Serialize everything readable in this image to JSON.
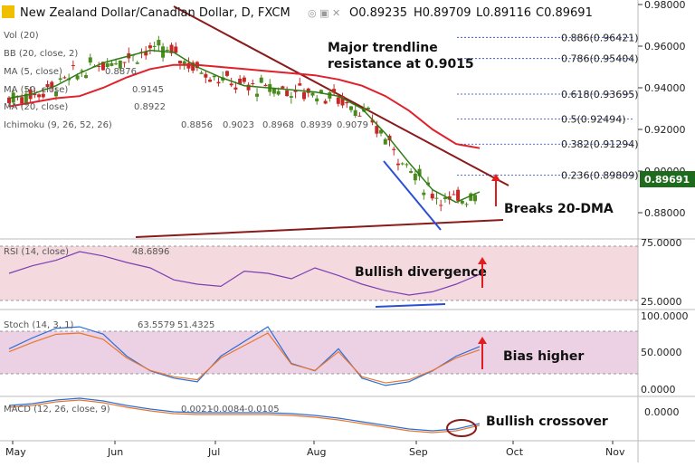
{
  "header": {
    "pair": "New Zealand Dollar/Canadian Dollar, D, FXCM",
    "o": "O0.89235",
    "h": "H0.89709",
    "l": "L0.89116",
    "c": "C0.89691"
  },
  "indicators": {
    "vol": "Vol (20)",
    "bb": "BB (20, close, 2)",
    "ma1": "MA (5, close)",
    "ma1_val": "0.8876",
    "ma2": "MA (50, close)",
    "ma2_val": "0.9145",
    "ma3": "MA (20, close)",
    "ma3_val": "0.8922",
    "ichimoku": "Ichimoku (9, 26, 52, 26)",
    "ichimoku_vals": [
      "0.8856",
      "0.9023",
      "0.8968",
      "0.8939",
      "0.9079"
    ],
    "rsi": "RSI (14, close)",
    "rsi_val": "48.6896",
    "stoch": "Stoch (14, 3, 1)",
    "stoch_k": "63.5579",
    "stoch_d": "51.4325",
    "macd": "MACD (12, 26, close, 9)",
    "macd_vals": [
      "0.0021",
      "-0.0084",
      "-0.0105"
    ]
  },
  "price_axis": [
    "0.98000",
    "0.96000",
    "0.94000",
    "0.92000",
    "0.90000",
    "0.88000"
  ],
  "last_price": "0.89691",
  "rsi_axis": [
    "75.0000",
    "25.0000"
  ],
  "stoch_axis": [
    "100.0000",
    "50.0000",
    "0.0000"
  ],
  "macd_axis": [
    "0.0000"
  ],
  "x_axis": [
    "May",
    "Jun",
    "Jul",
    "Aug",
    "Sep",
    "Oct",
    "Nov"
  ],
  "fib_levels": [
    {
      "label": "0.886(0.96421)",
      "price": 0.96421
    },
    {
      "label": "0.786(0.95404)",
      "price": 0.95404
    },
    {
      "label": "0.618(0.93695)",
      "price": 0.93695
    },
    {
      "label": "0.5(0.92494)",
      "price": 0.92494
    },
    {
      "label": "0.382(0.91294)",
      "price": 0.91294
    },
    {
      "label": "0.236(0.89809)",
      "price": 0.89809
    }
  ],
  "annotations": {
    "trend": "Major trendline\nresistance at 0.9015",
    "dma": "Breaks 20-DMA",
    "div": "Bullish divergence",
    "bias": "Bias higher",
    "cross": "Bullish crossover"
  },
  "colors": {
    "ma50": "#e0202a",
    "ma20": "#2e7d12",
    "ma5": "#2a4fd6",
    "trend": "#8b1a1a",
    "up": "#4a8a1e",
    "down": "#c62828",
    "rsi": "#7b3fb3",
    "rsi_band": "#f4d9df",
    "stoch_band": "#ecd0e4",
    "stoch_k": "#2a6fd6",
    "stoch_d": "#e8772e",
    "arrow": "#e01e1e",
    "fib": "#2a3bd0",
    "last": "#1e6b1e"
  },
  "chart_data": {
    "type": "candlestick",
    "title": "New Zealand Dollar/Canadian Dollar, D, FXCM",
    "x": [
      "2017-05-01",
      "2017-05-08",
      "2017-05-15",
      "2017-05-22",
      "2017-05-29",
      "2017-06-05",
      "2017-06-12",
      "2017-06-19",
      "2017-06-26",
      "2017-07-03",
      "2017-07-10",
      "2017-07-17",
      "2017-07-24",
      "2017-07-31",
      "2017-08-07",
      "2017-08-14",
      "2017-08-21",
      "2017-08-28",
      "2017-09-04",
      "2017-09-11",
      "2017-09-18"
    ],
    "series": [
      {
        "name": "MA (50, close)",
        "values": [
          0.931,
          0.933,
          0.935,
          0.936,
          0.94,
          0.945,
          0.949,
          0.951,
          0.951,
          0.95,
          0.949,
          0.948,
          0.947,
          0.946,
          0.944,
          0.941,
          0.936,
          0.929,
          0.92,
          0.913,
          0.911
        ]
      },
      {
        "name": "MA (20, close)",
        "values": [
          0.935,
          0.937,
          0.941,
          0.947,
          0.952,
          0.955,
          0.958,
          0.957,
          0.95,
          0.945,
          0.941,
          0.94,
          0.939,
          0.938,
          0.936,
          0.93,
          0.918,
          0.904,
          0.891,
          0.885,
          0.89
        ]
      },
      {
        "name": "RSI (14, close)",
        "values": [
          50,
          57,
          62,
          70,
          66,
          60,
          55,
          44,
          40,
          38,
          52,
          50,
          45,
          55,
          48,
          40,
          34,
          30,
          33,
          40,
          49
        ]
      },
      {
        "name": "Stoch (14, 3, 1)",
        "values": [
          60,
          75,
          88,
          90,
          80,
          50,
          30,
          20,
          15,
          50,
          70,
          90,
          40,
          30,
          60,
          20,
          10,
          15,
          30,
          50,
          63
        ]
      }
    ],
    "fib": [
      0.96421,
      0.95404,
      0.93695,
      0.92494,
      0.91294,
      0.89809
    ],
    "last": 0.89691,
    "ylim": [
      0.872,
      0.982
    ]
  }
}
